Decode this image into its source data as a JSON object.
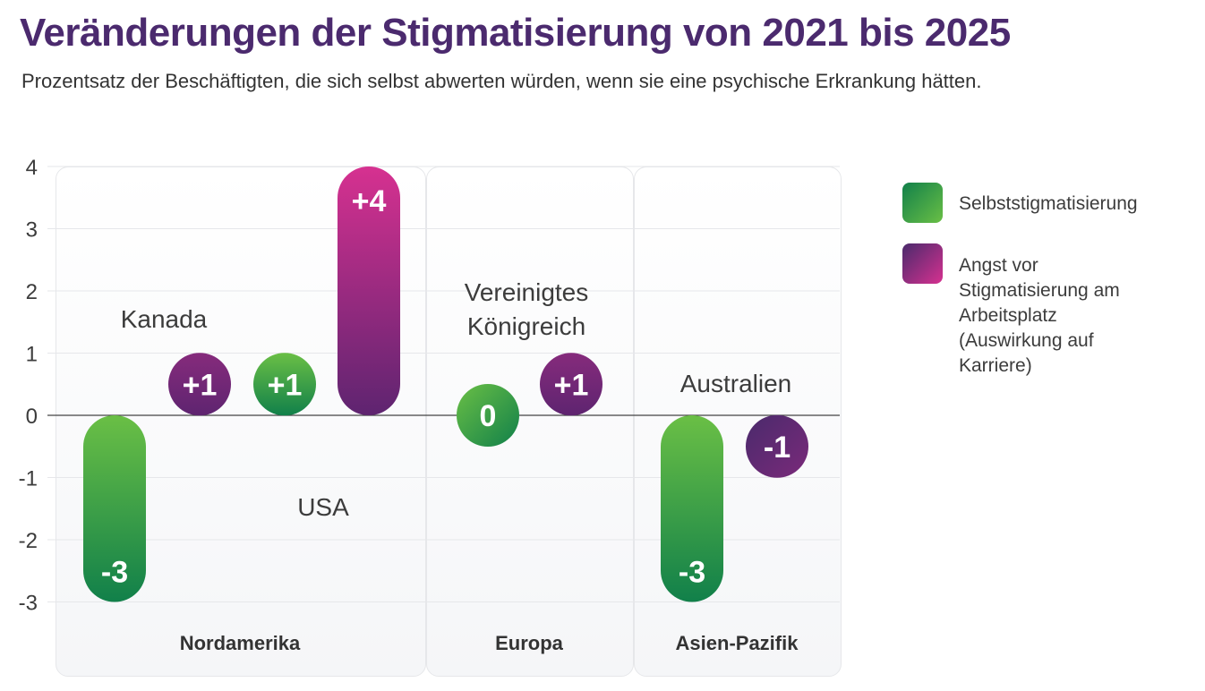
{
  "title": "Veränderungen der Stigmatisierung von 2021 bis 2025",
  "subtitle": "Prozentsatz der Beschäftigten, die sich selbst abwerten würden, wenn sie eine psychische Erkrankung hätten.",
  "chart_data": {
    "type": "bar",
    "title": "Veränderungen der Stigmatisierung von 2021 bis 2025",
    "ylim": [
      -3,
      4
    ],
    "yticks": [
      "4",
      "3",
      "2",
      "1",
      "0",
      "-1",
      "-2",
      "-3"
    ],
    "grid": true,
    "legend_position": "right",
    "regions": [
      "Nordamerika",
      "Europa",
      "Asien-Pazifik"
    ],
    "countries": [
      "Kanada",
      "USA",
      "Vereinigtes Königreich",
      "Australien"
    ],
    "series": [
      {
        "name": "Selbststigmatisierung",
        "values": [
          -3,
          1,
          0,
          -3
        ],
        "labels": [
          "-3",
          "+1",
          "0",
          "-3"
        ],
        "colors": [
          "#6abf45",
          "#11804a"
        ]
      },
      {
        "name": "Angst vor Stigmatisierung am Arbeitsplatz (Auswirkung auf Karriere)",
        "values": [
          1,
          4,
          1,
          -1
        ],
        "labels": [
          "+1",
          "+4",
          "+1",
          "-1"
        ],
        "colors": [
          "#d63190",
          "#5e2470"
        ]
      }
    ]
  }
}
